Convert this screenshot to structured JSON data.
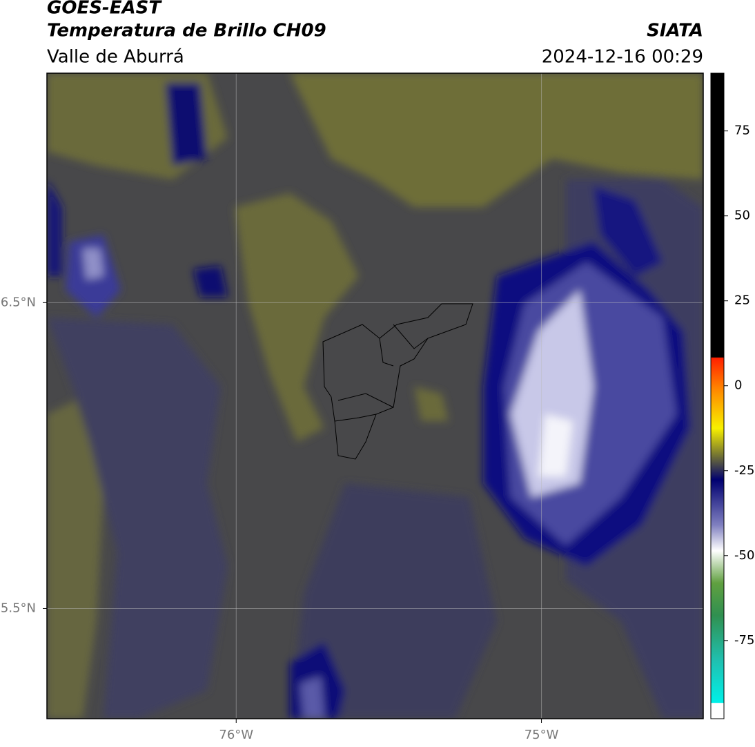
{
  "chart_data": {
    "type": "contour-map",
    "title": "GOES-EAST",
    "subtitle": "Temperatura de Brillo CH09",
    "region": "Valle de Aburrá",
    "source": "SIATA",
    "timestamp": "2024-12-16 00:29",
    "xlim": [
      -76.62,
      -74.47
    ],
    "ylim": [
      5.14,
      7.25
    ],
    "xticks": [
      {
        "value": -76,
        "label": "76°W"
      },
      {
        "value": -75,
        "label": "75°W"
      }
    ],
    "yticks": [
      {
        "value": 6.5,
        "label": "6.5°N"
      },
      {
        "value": 5.5,
        "label": "5.5°N"
      }
    ],
    "grid": true,
    "colorbar": {
      "lim": [
        -98,
        92
      ],
      "ticks": [
        75,
        50,
        25,
        0,
        -25,
        -50,
        -75
      ]
    }
  }
}
